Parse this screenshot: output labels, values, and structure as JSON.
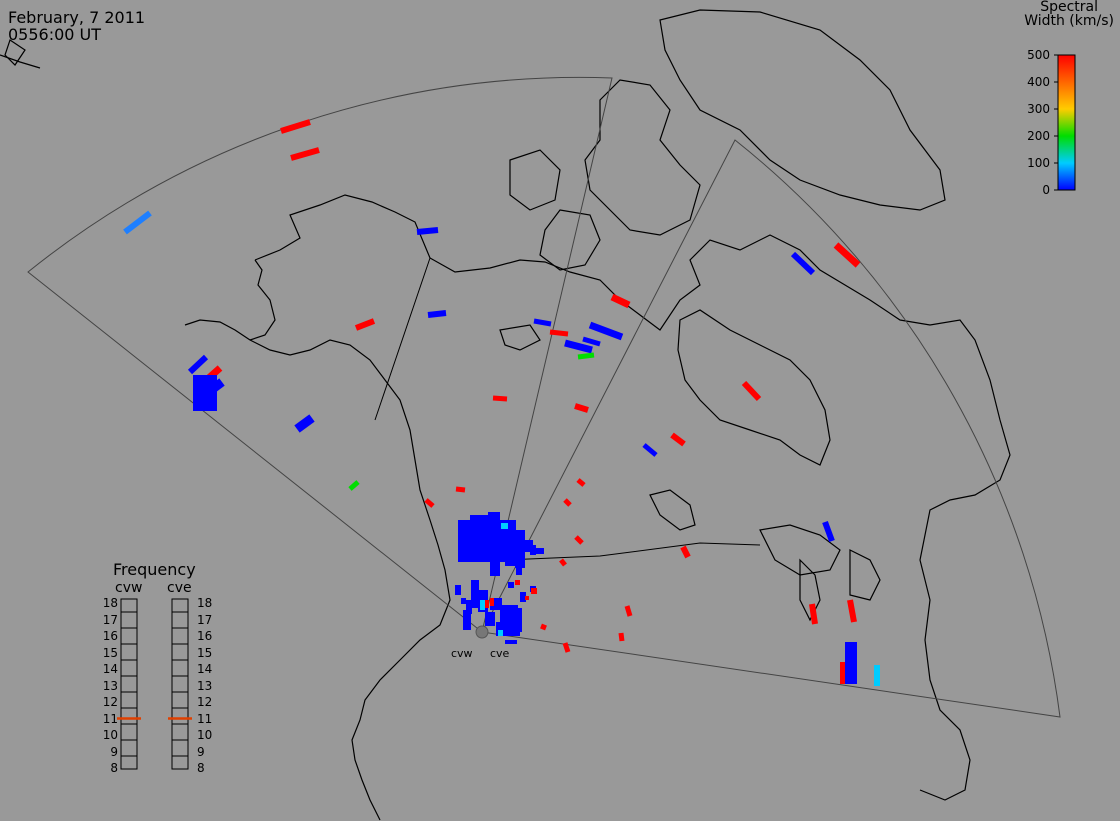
{
  "header": {
    "date": "February, 7 2011",
    "time": "0556:00 UT"
  },
  "colorbar": {
    "title_line1": "Spectral",
    "title_line2": "Width (km/s)",
    "ticks": [
      "500",
      "400",
      "300",
      "200",
      "100",
      "0"
    ],
    "colors": [
      "#ff0000",
      "#ff6600",
      "#ffcc00",
      "#00dd00",
      "#00ccff",
      "#0000ff"
    ]
  },
  "frequency_panel": {
    "title": "Frequency",
    "left_label": "cvw",
    "right_label": "cve",
    "scale": [
      "18",
      "17",
      "16",
      "15",
      "14",
      "13",
      "12",
      "11",
      "10",
      "9",
      "8"
    ],
    "cvw_freq_mhz": 11,
    "cve_freq_mhz": 11,
    "marker_color": "#e04000"
  },
  "stations": {
    "west": "cvw",
    "east": "cve"
  },
  "colors": {
    "background": "#999999",
    "coastline": "#000000",
    "fov": "#444444"
  }
}
